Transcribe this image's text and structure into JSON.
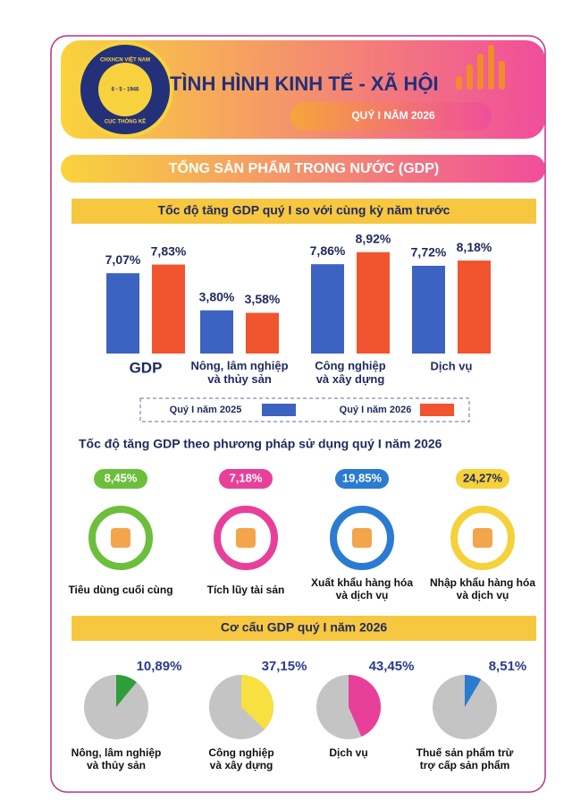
{
  "header": {
    "title": "TÌNH HÌNH KINH TẾ - XÃ HỘI",
    "subtitle": "QUÝ I NĂM 2026",
    "logo_top": "CHXHCN VIỆT NAM",
    "logo_date": "6 - 5 - 1946",
    "logo_bottom": "CỤC THỐNG KÊ"
  },
  "section_title": "TỔNG SẢN PHẨM TRONG NƯỚC (GDP)",
  "chart_data": [
    {
      "type": "bar",
      "title": "Tốc độ tăng GDP quý I so với cùng kỳ năm trước",
      "categories": [
        "GDP",
        "Nông, lâm nghiệp\nvà thủy sản",
        "Công nghiệp\nvà xây dựng",
        "Dịch vụ"
      ],
      "series": [
        {
          "name": "Quý I năm 2025",
          "color": "#3d63c2",
          "values": [
            7.07,
            3.8,
            7.86,
            7.72
          ],
          "value_labels": [
            "7,07%",
            "3,80%",
            "7,86%",
            "7,72%"
          ]
        },
        {
          "name": "Quý I năm 2026",
          "color": "#f0552f",
          "values": [
            7.83,
            3.58,
            8.92,
            8.18
          ],
          "value_labels": [
            "7,83%",
            "3,58%",
            "8,92%",
            "8,18%"
          ]
        }
      ]
    },
    {
      "type": "indicators",
      "title": "Tốc độ tăng GDP theo phương pháp sử dụng quý I năm 2026",
      "categories": [
        "Tiêu dùng cuối cùng",
        "Tích lũy tài sản",
        "Xuất khẩu hàng hóa\nvà dịch vụ",
        "Nhập khẩu hàng hóa\nvà dịch vụ"
      ],
      "values": [
        8.45,
        7.18,
        19.85,
        24.27
      ],
      "value_labels": [
        "8,45%",
        "7,18%",
        "19,85%",
        "24,27%"
      ],
      "colors": [
        "#6cbf3c",
        "#e8409a",
        "#2a7bd1",
        "#f5d13a"
      ]
    },
    {
      "type": "pie",
      "title": "Cơ cấu GDP quý I năm 2026",
      "categories": [
        "Nông, lâm nghiệp\nvà thủy sản",
        "Công nghiệp\nvà xây dựng",
        "Dịch vụ",
        "Thuế sản phẩm trừ\ntrợ cấp sản phẩm"
      ],
      "values": [
        10.89,
        37.15,
        43.45,
        8.51
      ],
      "value_labels": [
        "10,89%",
        "37,15%",
        "43,45%",
        "8,51%"
      ],
      "colors": [
        "#2e9e3a",
        "#f7e040",
        "#e8409a",
        "#2a7bd1"
      ]
    }
  ]
}
